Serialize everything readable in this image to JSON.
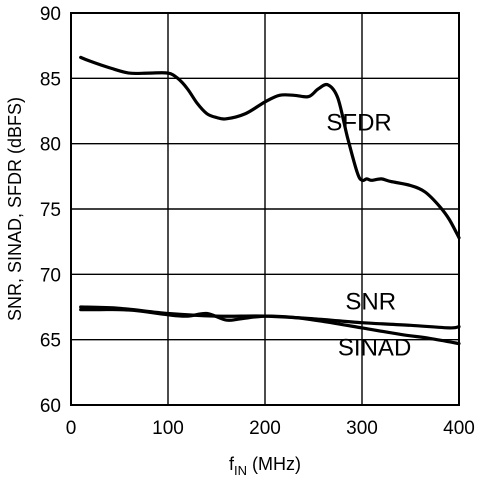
{
  "chart_data": {
    "type": "line",
    "title": "",
    "xlabel_main": "f",
    "xlabel_sub": "IN",
    "xlabel_rest": " (MHz)",
    "ylabel": "SNR, SINAD, SFDR (dBFS)",
    "xlim": [
      0,
      400
    ],
    "ylim": [
      60,
      90
    ],
    "x_ticks": [
      0,
      100,
      200,
      300,
      400
    ],
    "y_ticks": [
      60,
      65,
      70,
      75,
      80,
      85,
      90
    ],
    "grid": true,
    "legend": "inline labels",
    "series": [
      {
        "name": "SFDR",
        "x": [
          10,
          20,
          40,
          60,
          80,
          100,
          110,
          120,
          130,
          140,
          150,
          160,
          180,
          200,
          215,
          230,
          245,
          255,
          265,
          275,
          285,
          295,
          300,
          305,
          310,
          320,
          330,
          350,
          365,
          380,
          390,
          400
        ],
        "y": [
          86.6,
          86.3,
          85.8,
          85.4,
          85.4,
          85.4,
          85.0,
          84.2,
          83.1,
          82.3,
          82.0,
          81.9,
          82.3,
          83.2,
          83.7,
          83.7,
          83.6,
          84.2,
          84.5,
          83.5,
          80.5,
          77.8,
          77.2,
          77.3,
          77.2,
          77.3,
          77.1,
          76.8,
          76.3,
          75.2,
          74.2,
          72.8
        ]
      },
      {
        "name": "SNR",
        "x": [
          10,
          50,
          100,
          150,
          200,
          250,
          300,
          350,
          390,
          400
        ],
        "y": [
          67.5,
          67.4,
          67.0,
          66.8,
          66.8,
          66.6,
          66.3,
          66.1,
          65.9,
          66.0
        ]
      },
      {
        "name": "SINAD",
        "x": [
          10,
          30,
          50,
          70,
          100,
          120,
          140,
          160,
          175,
          200,
          230,
          260,
          300,
          340,
          370,
          400
        ],
        "y": [
          67.3,
          67.3,
          67.3,
          67.2,
          66.9,
          66.8,
          67.0,
          66.5,
          66.6,
          66.8,
          66.7,
          66.4,
          65.9,
          65.4,
          65.1,
          64.7
        ]
      }
    ],
    "series_labels": [
      {
        "name": "SFDR",
        "x": 297,
        "y": 81.0
      },
      {
        "name": "SNR",
        "x": 309,
        "y": 67.3
      },
      {
        "name": "SINAD",
        "x": 313,
        "y": 63.8
      }
    ]
  }
}
